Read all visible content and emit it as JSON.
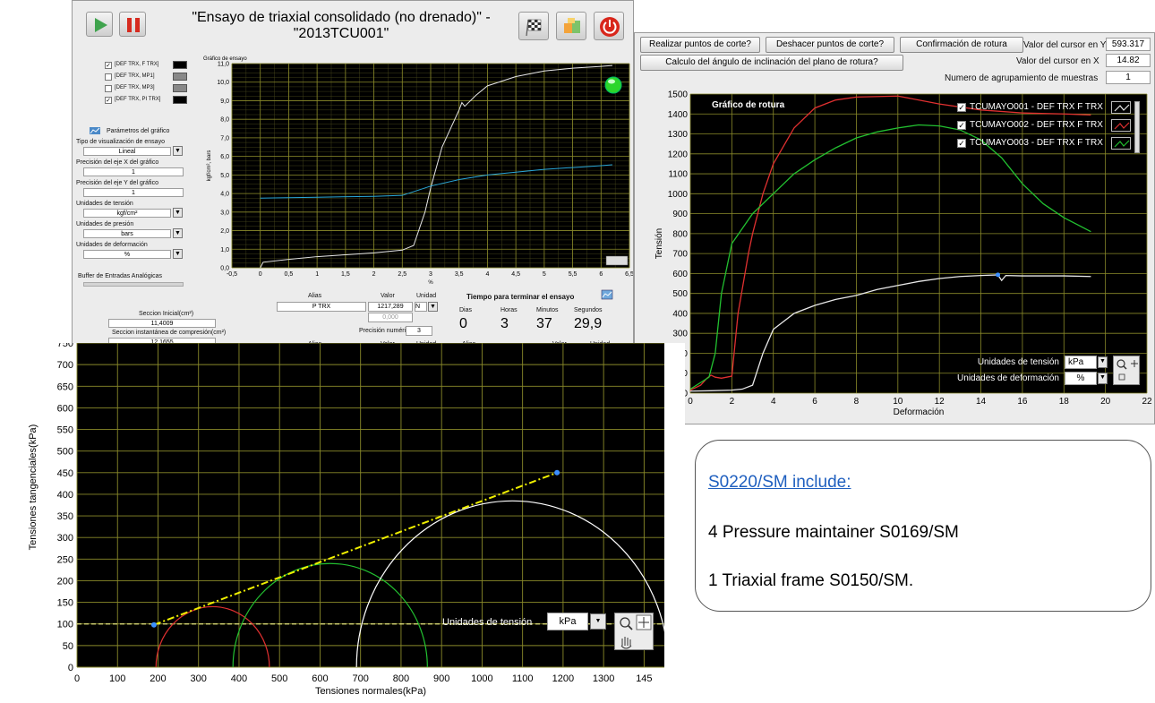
{
  "test_panel": {
    "title_line1": "\"Ensayo de triaxial consolidado (no drenado)\" -",
    "title_line2": "\"2013TCU001\"",
    "legend": [
      "[DEF TRX, F TRX]",
      "[DEF TRX, MP1]",
      "[DEF TRX, MP3]",
      "[DEF TRX, PI TRX]"
    ],
    "legend_checked": [
      true,
      false,
      false,
      true
    ],
    "graph_title": "Gráfico de ensayo",
    "y_unit_label": "kgf/cm², bars",
    "x_unit_label": "%",
    "params_title": "Parámetros del gráfico",
    "params": [
      {
        "label": "Tipo de visualización de ensayo",
        "value": "Lineal",
        "dropdown": true
      },
      {
        "label": "Precisión del eje X del gráfico",
        "value": "1",
        "dropdown": false
      },
      {
        "label": "Precisión del eje Y del gráfico",
        "value": "1",
        "dropdown": false
      },
      {
        "label": "Unidades de tensión",
        "value": "kgf/cm²",
        "dropdown": true
      },
      {
        "label": "Unidades de presión",
        "value": "bars",
        "dropdown": true
      },
      {
        "label": "Unidades de deformación",
        "value": "%",
        "dropdown": true
      }
    ],
    "buffer_label": "Buffer de Entradas Analógicas",
    "section_initial_label": "Seccion Inicial(cm²)",
    "section_initial_value": "11,4009",
    "section_instant_label": "Seccion instantánea de compresión(cm²)",
    "section_instant_value": "12,1655",
    "alias_header": "Alias",
    "valor_header": "Valor",
    "unidad_header": "Unidad",
    "alias_value": "P TRX",
    "valor_value": "1217,289",
    "valor_value2": "0,000",
    "unidad_value": "N",
    "precision_label": "Precisión numérica",
    "precision_value": "3",
    "time_title": "Tiempo para terminar el ensayo",
    "time_headers": [
      "Dias",
      "Horas",
      "Minutos",
      "Segundos"
    ],
    "time_values": [
      "0",
      "3",
      "37",
      "29,9"
    ],
    "chart_data": {
      "type": "line",
      "title": "Gráfico de ensayo",
      "xlabel": "%",
      "ylabel": "kgf/cm², bars",
      "xlim": [
        -0.5,
        6.5
      ],
      "ylim": [
        0,
        11
      ],
      "x_ticks": [
        "-0,5",
        "0",
        "0,5",
        "1",
        "1,5",
        "2",
        "2,5",
        "3",
        "3,5",
        "4",
        "4,5",
        "5",
        "5,5",
        "6",
        "6,5"
      ],
      "y_ticks": [
        "0,0",
        "1,0",
        "2,0",
        "3,0",
        "4,0",
        "5,0",
        "6,0",
        "7,0",
        "8,0",
        "9,0",
        "10,0",
        "11,0"
      ],
      "series": [
        {
          "name": "[DEF TRX, F TRX]",
          "color": "#e6e6e6",
          "x": [
            0,
            0.05,
            0.5,
            1.0,
            1.5,
            2.0,
            2.5,
            2.7,
            2.9,
            3.0,
            3.2,
            3.5,
            3.55,
            3.6,
            3.8,
            4.0,
            4.5,
            5.0,
            5.5,
            6.0,
            6.2
          ],
          "y": [
            0,
            0.3,
            0.45,
            0.6,
            0.7,
            0.8,
            0.95,
            1.2,
            3.0,
            4.3,
            6.5,
            8.5,
            8.9,
            8.7,
            9.3,
            9.8,
            10.3,
            10.6,
            10.75,
            10.85,
            10.9
          ]
        },
        {
          "name": "[DEF TRX, PI TRX]",
          "color": "#2aa7d8",
          "x": [
            0,
            1,
            2,
            2.5,
            3.0,
            3.5,
            4.0,
            4.5,
            5.0,
            5.5,
            6.0,
            6.2
          ],
          "y": [
            3.75,
            3.8,
            3.85,
            3.9,
            4.4,
            4.75,
            5.0,
            5.15,
            5.3,
            5.4,
            5.5,
            5.55
          ]
        }
      ]
    }
  },
  "rupture_panel": {
    "btn_cut_points": "Realizar puntos de corte?",
    "btn_undo_cut": "Deshacer puntos de corte?",
    "btn_confirm": "Confirmación de rotura",
    "btn_angle": "Calculo del ángulo de inclinación del plano de rotura?",
    "cursor_y_label": "Valor del cursor en Y",
    "cursor_y_value": "593.317",
    "cursor_x_label": "Valor del cursor en X",
    "cursor_x_value": "14.82",
    "group_label": "Numero de agrupamiento de muestras",
    "group_value": "1",
    "graph_title": "Gráfico de rotura",
    "legend": [
      "TCUMAYO001 - DEF TRX F TRX",
      "TCUMAYO002 - DEF TRX F TRX",
      "TCUMAYO003 - DEF TRX F TRX"
    ],
    "units_tension_label": "Unidades de tensión",
    "units_tension_value": "kPa",
    "units_deform_label": "Unidades de deformación",
    "units_deform_value": "%",
    "chart_data": {
      "type": "line",
      "title": "Gráfico de rotura",
      "xlabel": "Deformación",
      "ylabel": "Tensión",
      "xlim": [
        0,
        22
      ],
      "ylim": [
        0,
        1500
      ],
      "x_ticks": [
        "0",
        "2",
        "4",
        "6",
        "8",
        "10",
        "12",
        "14",
        "16",
        "18",
        "20",
        "22"
      ],
      "y_ticks": [
        "0",
        "100",
        "200",
        "300",
        "400",
        "500",
        "600",
        "700",
        "800",
        "900",
        "1000",
        "1100",
        "1200",
        "1300",
        "1400",
        "1500"
      ],
      "series": [
        {
          "name": "TCUMAYO001 - DEF TRX F TRX",
          "color": "#e8e8e8",
          "x": [
            0,
            1,
            2,
            2.5,
            3,
            3.5,
            4,
            5,
            6,
            7,
            8,
            9,
            10,
            11,
            12,
            13,
            14,
            14.82,
            15,
            15.2,
            16,
            18,
            19.3
          ],
          "y": [
            10,
            12,
            15,
            20,
            40,
            200,
            320,
            400,
            440,
            470,
            490,
            520,
            540,
            560,
            575,
            585,
            590,
            593,
            565,
            590,
            588,
            588,
            585
          ]
        },
        {
          "name": "TCUMAYO002 - DEF TRX F TRX",
          "color": "#e03030",
          "x": [
            0,
            0.5,
            0.8,
            1.0,
            1.2,
            1.5,
            2.0,
            2.3,
            2.8,
            3.0,
            3.5,
            4,
            5,
            6,
            7,
            8,
            10,
            12,
            14,
            16,
            18,
            19.3
          ],
          "y": [
            15,
            40,
            75,
            90,
            80,
            75,
            85,
            400,
            700,
            800,
            1000,
            1150,
            1330,
            1430,
            1470,
            1485,
            1490,
            1450,
            1420,
            1405,
            1400,
            1395
          ]
        },
        {
          "name": "TCUMAYO003 - DEF TRX F TRX",
          "color": "#22c030",
          "x": [
            0,
            0.6,
            0.9,
            1.2,
            1.5,
            2,
            3,
            4,
            5,
            6,
            7,
            8,
            9,
            10,
            11,
            12,
            13,
            14,
            15,
            16,
            17,
            18,
            19.3
          ],
          "y": [
            20,
            60,
            80,
            200,
            500,
            750,
            900,
            1000,
            1100,
            1170,
            1230,
            1280,
            1310,
            1330,
            1345,
            1340,
            1320,
            1270,
            1180,
            1050,
            950,
            880,
            810
          ]
        }
      ]
    }
  },
  "mohr_panel": {
    "units_tension_label": "Unidades de tensión",
    "units_tension_value": "kPa",
    "chart_data": {
      "type": "line",
      "xlabel": "Tensiones normales(kPa)",
      "ylabel": "Tensiones tangenciales(kPa)",
      "xlim": [
        0,
        1450
      ],
      "ylim": [
        0,
        750
      ],
      "x_ticks": [
        "0",
        "100",
        "200",
        "300",
        "400",
        "500",
        "600",
        "700",
        "800",
        "900",
        "1000",
        "1100",
        "1200",
        "1300",
        "145"
      ],
      "y_ticks": [
        "0",
        "50",
        "100",
        "150",
        "200",
        "250",
        "300",
        "350",
        "400",
        "450",
        "500",
        "550",
        "600",
        "650",
        "700",
        "750"
      ],
      "circles": [
        {
          "center": 335,
          "radius": 140,
          "color": "#e03030"
        },
        {
          "center": 625,
          "radius": 240,
          "color": "#22c030"
        },
        {
          "center": 1075,
          "radius": 385,
          "color": "#ffffff"
        }
      ],
      "envelope": {
        "color": "#f0f000",
        "x": [
          190,
          1185
        ],
        "y": [
          98,
          450
        ]
      },
      "cursor_line_y": 100
    }
  },
  "info_box": {
    "heading": "S0220/SM include:",
    "line1": "4 Pressure maintainer S0169/SM",
    "line2": "1 Triaxial frame S0150/SM."
  }
}
